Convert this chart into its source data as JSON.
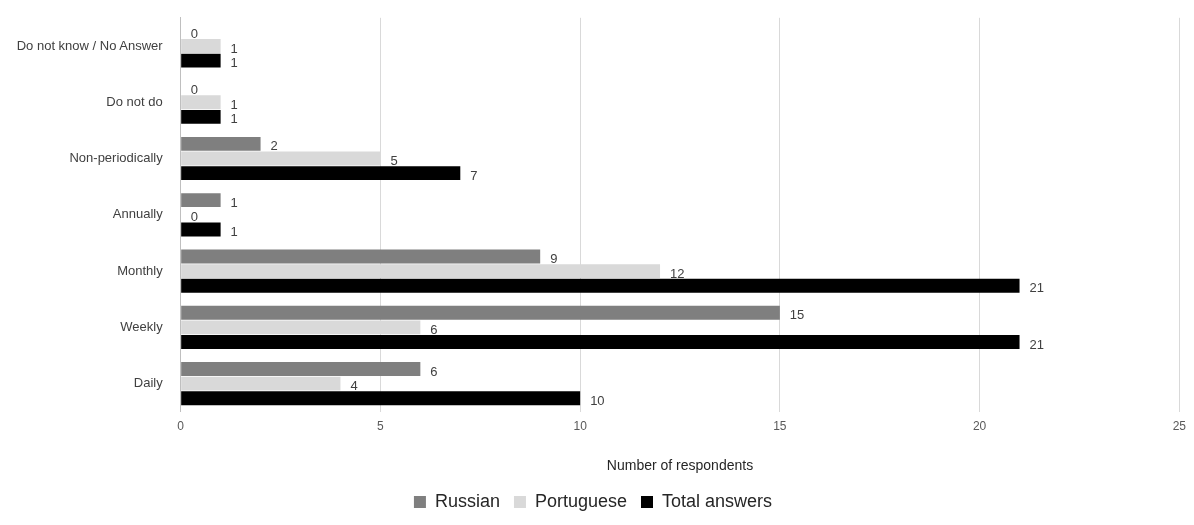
{
  "chart_data": {
    "type": "bar",
    "orientation": "horizontal",
    "xlabel": "Number of respondents",
    "categories": [
      "Do not know / No Answer",
      "Do not do",
      "Non-periodically",
      "Annually",
      "Monthly",
      "Weekly",
      "Daily"
    ],
    "series": [
      {
        "name": "Russian",
        "color": "#7f7f7f",
        "values": [
          0,
          0,
          2,
          1,
          9,
          15,
          6
        ]
      },
      {
        "name": "Portuguese",
        "color": "#d9d9d9",
        "values": [
          1,
          1,
          5,
          0,
          12,
          6,
          4
        ]
      },
      {
        "name": "Total answers",
        "color": "#000000",
        "values": [
          1,
          1,
          7,
          1,
          21,
          21,
          10
        ]
      }
    ],
    "xlim": [
      0,
      25
    ],
    "xticks": [
      0,
      5,
      10,
      15,
      20,
      25
    ],
    "grid": "x",
    "legend": "bottom",
    "data_labels": true
  }
}
